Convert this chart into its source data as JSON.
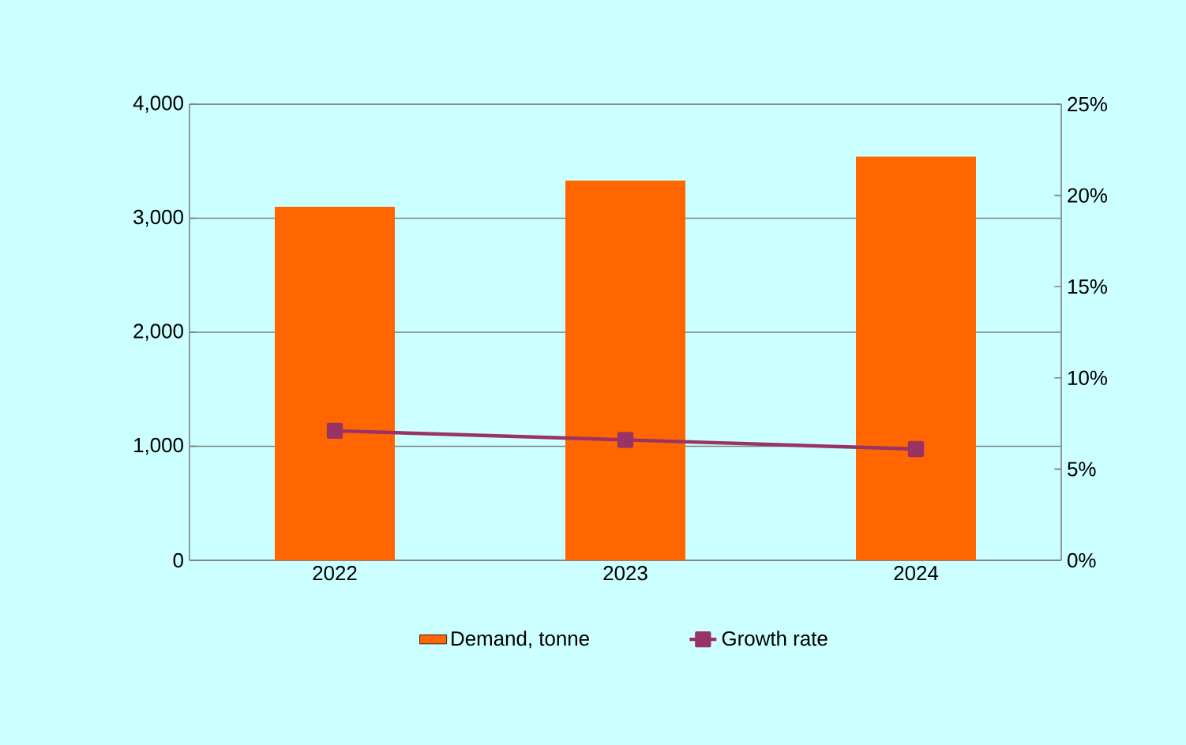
{
  "chart_data": {
    "type": "bar",
    "categories": [
      "2022",
      "2023",
      "2024"
    ],
    "series": [
      {
        "name": "Demand, tonne",
        "color": "#ff6600",
        "values": [
          3100,
          3330,
          3540
        ]
      },
      {
        "name": "Growth rate",
        "type": "line",
        "axis": "y2",
        "color": "#993366",
        "values": [
          7.1,
          6.6,
          6.1
        ]
      }
    ],
    "ylim": [
      0,
      4000
    ],
    "yticks": [
      0,
      {
        "value": 1000,
        "label": "1,000"
      },
      {
        "value": 2000,
        "label": "2,000"
      },
      {
        "value": 3000,
        "label": "3,000"
      },
      {
        "value": 4000,
        "label": "4,000"
      }
    ],
    "y2lim": [
      0,
      25
    ],
    "y2ticks": [
      {
        "value": 0,
        "label": "0%"
      },
      {
        "value": 5,
        "label": "5%"
      },
      {
        "value": 10,
        "label": "10%"
      },
      {
        "value": 15,
        "label": "15%"
      },
      {
        "value": 20,
        "label": "20%"
      },
      {
        "value": 25,
        "label": "25%"
      }
    ],
    "grid": "y",
    "legend": "bottom",
    "marker": "square",
    "line_style": "solid"
  }
}
